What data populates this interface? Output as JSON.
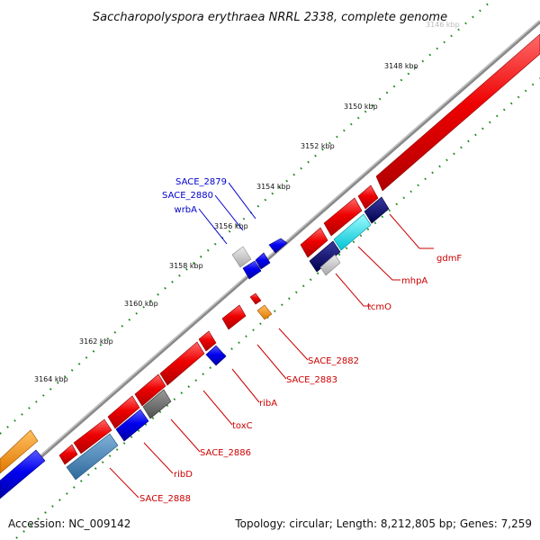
{
  "title": "Saccharopolyspora erythraea NRRL 2338, complete genome",
  "footer": {
    "accession": "Accession: NC_009142",
    "summary": "Topology: circular; Length: 8,212,805 bp; Genes: 7,259"
  },
  "ticks": [
    "3146 kbp",
    "3148 kbp",
    "3150 kbp",
    "3152 kbp",
    "3154 kbp",
    "3156 kbp",
    "3158 kbp",
    "3160 kbp",
    "3162 kbp",
    "3164 kbp"
  ],
  "labels": {
    "sace2879": "SACE_2879",
    "sace2880": "SACE_2880",
    "wrbA": "wrbA",
    "gdmF": "gdmF",
    "mhpA": "mhpA",
    "tcmO": "tcmO",
    "sace2882": "SACE_2882",
    "sace2883": "SACE_2883",
    "ribA": "ribA",
    "toxC": "toxC",
    "sace2886": "SACE_2886",
    "ribD": "ribD",
    "sace2888": "SACE_2888"
  },
  "colors": {
    "forward_label": "#0000cc",
    "reverse_label": "#cc0000",
    "red": "#ee0000",
    "blue": "#0000ee",
    "navy": "#00006e",
    "cyan": "#00e6f0",
    "orange": "#ff8c00",
    "steelblue": "#4682b4",
    "grey": "#707070",
    "lightgrey": "#c8c8c8",
    "tick_dots": "#1a8a1a"
  }
}
